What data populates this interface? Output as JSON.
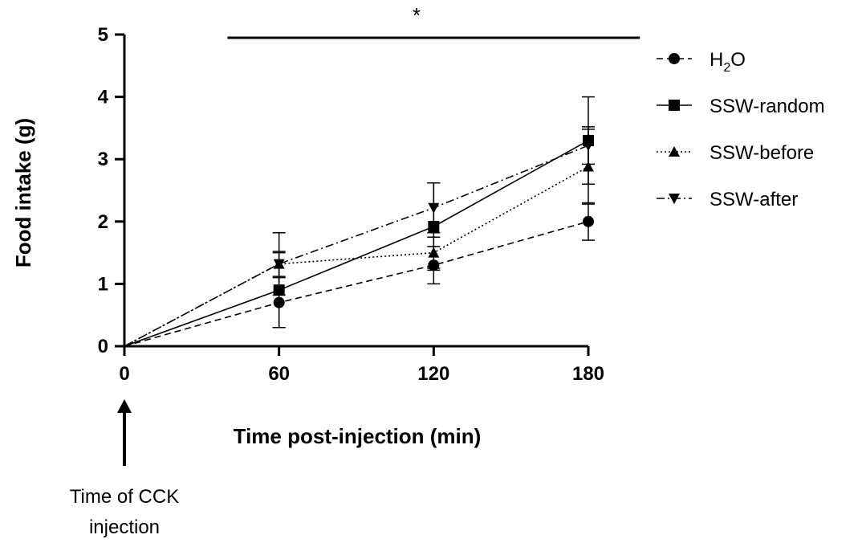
{
  "chart_data": {
    "type": "line",
    "xlabel": "Time post-injection (min)",
    "ylabel": "Food intake (g)",
    "xlim": [
      0,
      180
    ],
    "ylim": [
      0,
      5
    ],
    "x_ticks": [
      0,
      60,
      120,
      180
    ],
    "y_ticks": [
      0,
      1,
      2,
      3,
      4,
      5
    ],
    "grid": false,
    "legend_position": "right",
    "x": [
      0,
      60,
      120,
      180
    ],
    "series": [
      {
        "name_main": "H",
        "name_sub": "2",
        "name_tail": "O",
        "marker": "circle",
        "dash": "dashed",
        "values": [
          0,
          0.7,
          1.3,
          2.0
        ],
        "errors": [
          0,
          0.4,
          0.3,
          0.3
        ]
      },
      {
        "name": "SSW-random",
        "marker": "square",
        "dash": "solid",
        "values": [
          0,
          0.9,
          1.92,
          3.3
        ],
        "errors": [
          0,
          0.6,
          0.7,
          0.7
        ]
      },
      {
        "name": "SSW-before",
        "marker": "triangle-up",
        "dash": "dotted",
        "values": [
          0,
          1.32,
          1.5,
          2.88
        ],
        "errors": [
          0,
          0.2,
          0.25,
          0.6
        ]
      },
      {
        "name": "SSW-after",
        "marker": "triangle-down",
        "dash": "dashdot",
        "values": [
          0,
          1.32,
          2.22,
          3.22
        ],
        "errors": [
          0,
          0.5,
          0.4,
          0.3
        ]
      }
    ],
    "significance": {
      "label": "*",
      "x_start": 40,
      "x_end": 200
    },
    "annotation": {
      "line1": "Time of CCK",
      "line2": "injection"
    }
  }
}
